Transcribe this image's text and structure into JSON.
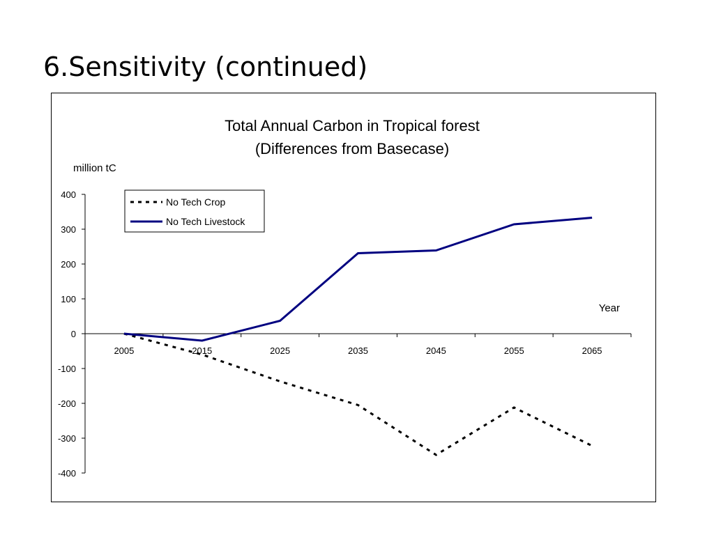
{
  "slide": {
    "title": "6.Sensitivity (continued)"
  },
  "chart_data": {
    "type": "line",
    "title": "Total Annual Carbon in Tropical forest",
    "subtitle": "(Differences from Basecase)",
    "ylabel": "million tC",
    "xlabel": "Year",
    "x": [
      "2005",
      "2015",
      "2025",
      "2035",
      "2045",
      "2055",
      "2065"
    ],
    "ylim": [
      -400,
      400
    ],
    "yticks": [
      400,
      300,
      200,
      100,
      0,
      -100,
      -200,
      -300,
      -400
    ],
    "grid": false,
    "legend_position": "top-left",
    "series": [
      {
        "name": "No Tech Crop",
        "style": "dashed",
        "color": "#000000",
        "values": [
          0,
          -60,
          -137,
          -205,
          -348,
          -212,
          -322
        ]
      },
      {
        "name": "No Tech Livestock",
        "style": "solid",
        "color": "#000080",
        "values": [
          0,
          -20,
          37,
          231,
          239,
          314,
          333
        ]
      }
    ]
  }
}
